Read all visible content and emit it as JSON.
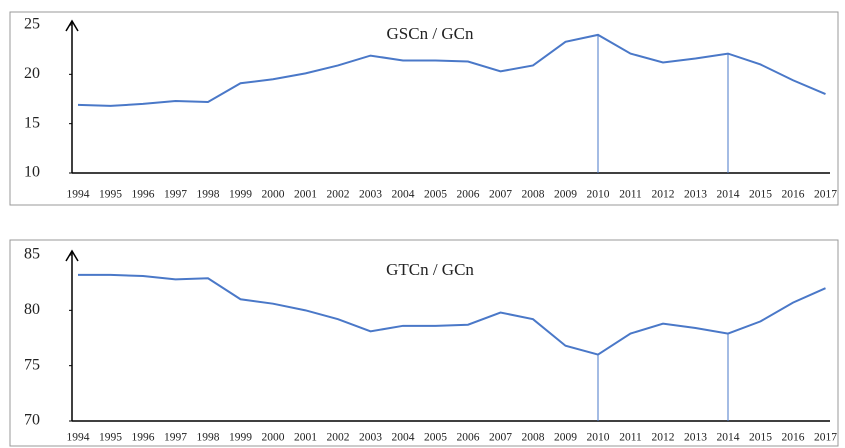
{
  "chart_data": [
    {
      "type": "line",
      "title": "GSCn / GCn",
      "categories": [
        "1994",
        "1995",
        "1996",
        "1997",
        "1998",
        "1999",
        "2000",
        "2001",
        "2002",
        "2003",
        "2004",
        "2005",
        "2006",
        "2007",
        "2008",
        "2009",
        "2010",
        "2011",
        "2012",
        "2013",
        "2014",
        "2015",
        "2016",
        "2017"
      ],
      "values": [
        16.9,
        16.8,
        17.0,
        17.3,
        17.2,
        19.1,
        19.5,
        20.1,
        20.9,
        21.9,
        21.4,
        21.4,
        21.3,
        20.3,
        20.9,
        23.3,
        24.0,
        22.1,
        21.2,
        21.6,
        22.1,
        21.0,
        19.4,
        18.0
      ],
      "color": "#4a78c8",
      "ylim": [
        10,
        25
      ],
      "yticks": [
        10,
        15,
        20,
        25
      ]
    },
    {
      "type": "line",
      "title": "GTCn / GCn",
      "categories": [
        "1994",
        "1995",
        "1996",
        "1997",
        "1998",
        "1999",
        "2000",
        "2001",
        "2002",
        "2003",
        "2004",
        "2005",
        "2006",
        "2007",
        "2008",
        "2009",
        "2010",
        "2011",
        "2012",
        "2013",
        "2014",
        "2015",
        "2016",
        "2017"
      ],
      "values": [
        83.2,
        83.2,
        83.1,
        82.8,
        82.9,
        81.0,
        80.6,
        80.0,
        79.2,
        78.1,
        78.6,
        78.6,
        78.7,
        79.8,
        79.2,
        76.8,
        76.0,
        77.9,
        78.8,
        78.4,
        77.9,
        79.0,
        80.7,
        82.0
      ],
      "color": "#4a78c8",
      "ylim": [
        70,
        85
      ],
      "yticks": [
        70,
        75,
        80,
        85
      ]
    }
  ]
}
